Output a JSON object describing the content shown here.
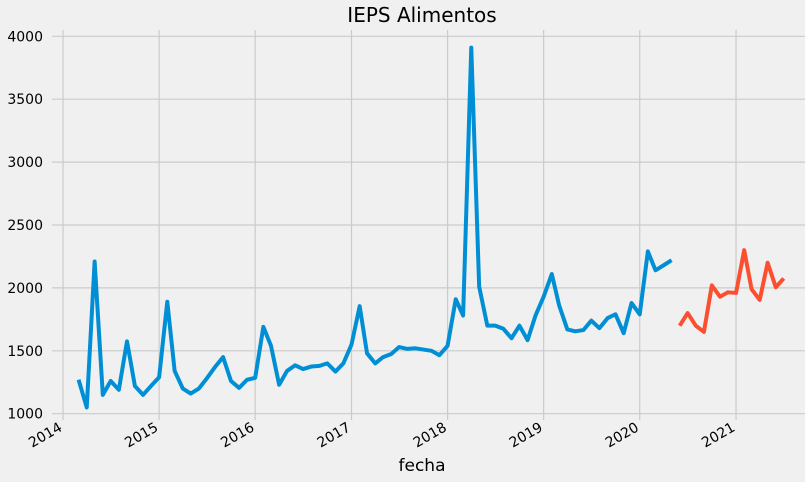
{
  "chart_data": {
    "type": "line",
    "title": "IEPS Alimentos",
    "xlabel": "fecha",
    "ylabel": "",
    "x_tick_labels": [
      "2014",
      "2015",
      "2016",
      "2017",
      "2018",
      "2019",
      "2020",
      "2021"
    ],
    "y_tick_values": [
      1000,
      1500,
      2000,
      2500,
      3000,
      3500,
      4000
    ],
    "y_tick_labels": [
      "1000",
      "1500",
      "2000",
      "2500",
      "3000",
      "3500",
      "4000"
    ],
    "ylim": [
      950,
      4050
    ],
    "xlim": [
      "2013-11-20",
      "2021-09-20"
    ],
    "grid": true,
    "legend": "none",
    "colors": {
      "background": "#f0f0f0",
      "grid": "#cbcbcb",
      "series_1": "#008fd5",
      "series_2": "#fc4f30"
    },
    "series": [
      {
        "x": [
          "2014-03",
          "2014-04",
          "2014-05",
          "2014-06",
          "2014-07",
          "2014-08",
          "2014-09",
          "2014-10",
          "2014-11",
          "2014-12",
          "2015-01",
          "2015-02",
          "2015-03",
          "2015-04",
          "2015-05",
          "2015-06",
          "2015-07",
          "2015-08",
          "2015-09",
          "2015-10",
          "2015-11",
          "2015-12",
          "2016-01",
          "2016-02",
          "2016-03",
          "2016-04",
          "2016-05",
          "2016-06",
          "2016-07",
          "2016-08",
          "2016-09",
          "2016-10",
          "2016-11",
          "2016-12",
          "2017-01",
          "2017-02",
          "2017-03",
          "2017-04",
          "2017-05",
          "2017-06",
          "2017-07",
          "2017-08",
          "2017-09",
          "2017-10",
          "2017-11",
          "2017-12",
          "2018-01",
          "2018-02",
          "2018-03",
          "2018-04",
          "2018-05",
          "2018-06",
          "2018-07",
          "2018-08",
          "2018-09",
          "2018-10",
          "2018-11",
          "2018-12",
          "2019-01",
          "2019-02",
          "2019-03",
          "2019-04",
          "2019-05",
          "2019-06",
          "2019-07",
          "2019-08",
          "2019-09",
          "2019-10",
          "2019-11",
          "2019-12",
          "2020-01",
          "2020-02",
          "2020-03",
          "2020-04",
          "2020-05"
        ],
        "y": [
          1270,
          1050,
          2210,
          1150,
          1260,
          1190,
          1575,
          1220,
          1150,
          1220,
          1290,
          1890,
          1340,
          1200,
          1160,
          1200,
          1280,
          1370,
          1450,
          1260,
          1205,
          1270,
          1285,
          1690,
          1540,
          1230,
          1340,
          1385,
          1355,
          1375,
          1380,
          1400,
          1335,
          1400,
          1550,
          1855,
          1480,
          1400,
          1450,
          1475,
          1530,
          1515,
          1520,
          1510,
          1500,
          1465,
          1540,
          1910,
          1780,
          3910,
          2010,
          1700,
          1700,
          1675,
          1600,
          1700,
          1585,
          1780,
          1930,
          2110,
          1860,
          1670,
          1655,
          1665,
          1740,
          1680,
          1760,
          1790,
          1640,
          1880,
          1790,
          2290,
          2140,
          2180,
          2220
        ]
      },
      {
        "x": [
          "2020-06",
          "2020-07",
          "2020-08",
          "2020-09",
          "2020-10",
          "2020-11",
          "2020-12",
          "2021-01",
          "2021-02",
          "2021-03",
          "2021-04",
          "2021-05",
          "2021-06",
          "2021-07"
        ],
        "y": [
          1700,
          1800,
          1700,
          1650,
          2020,
          1930,
          1965,
          1960,
          2300,
          1990,
          1905,
          2200,
          2005,
          2075
        ]
      }
    ]
  }
}
